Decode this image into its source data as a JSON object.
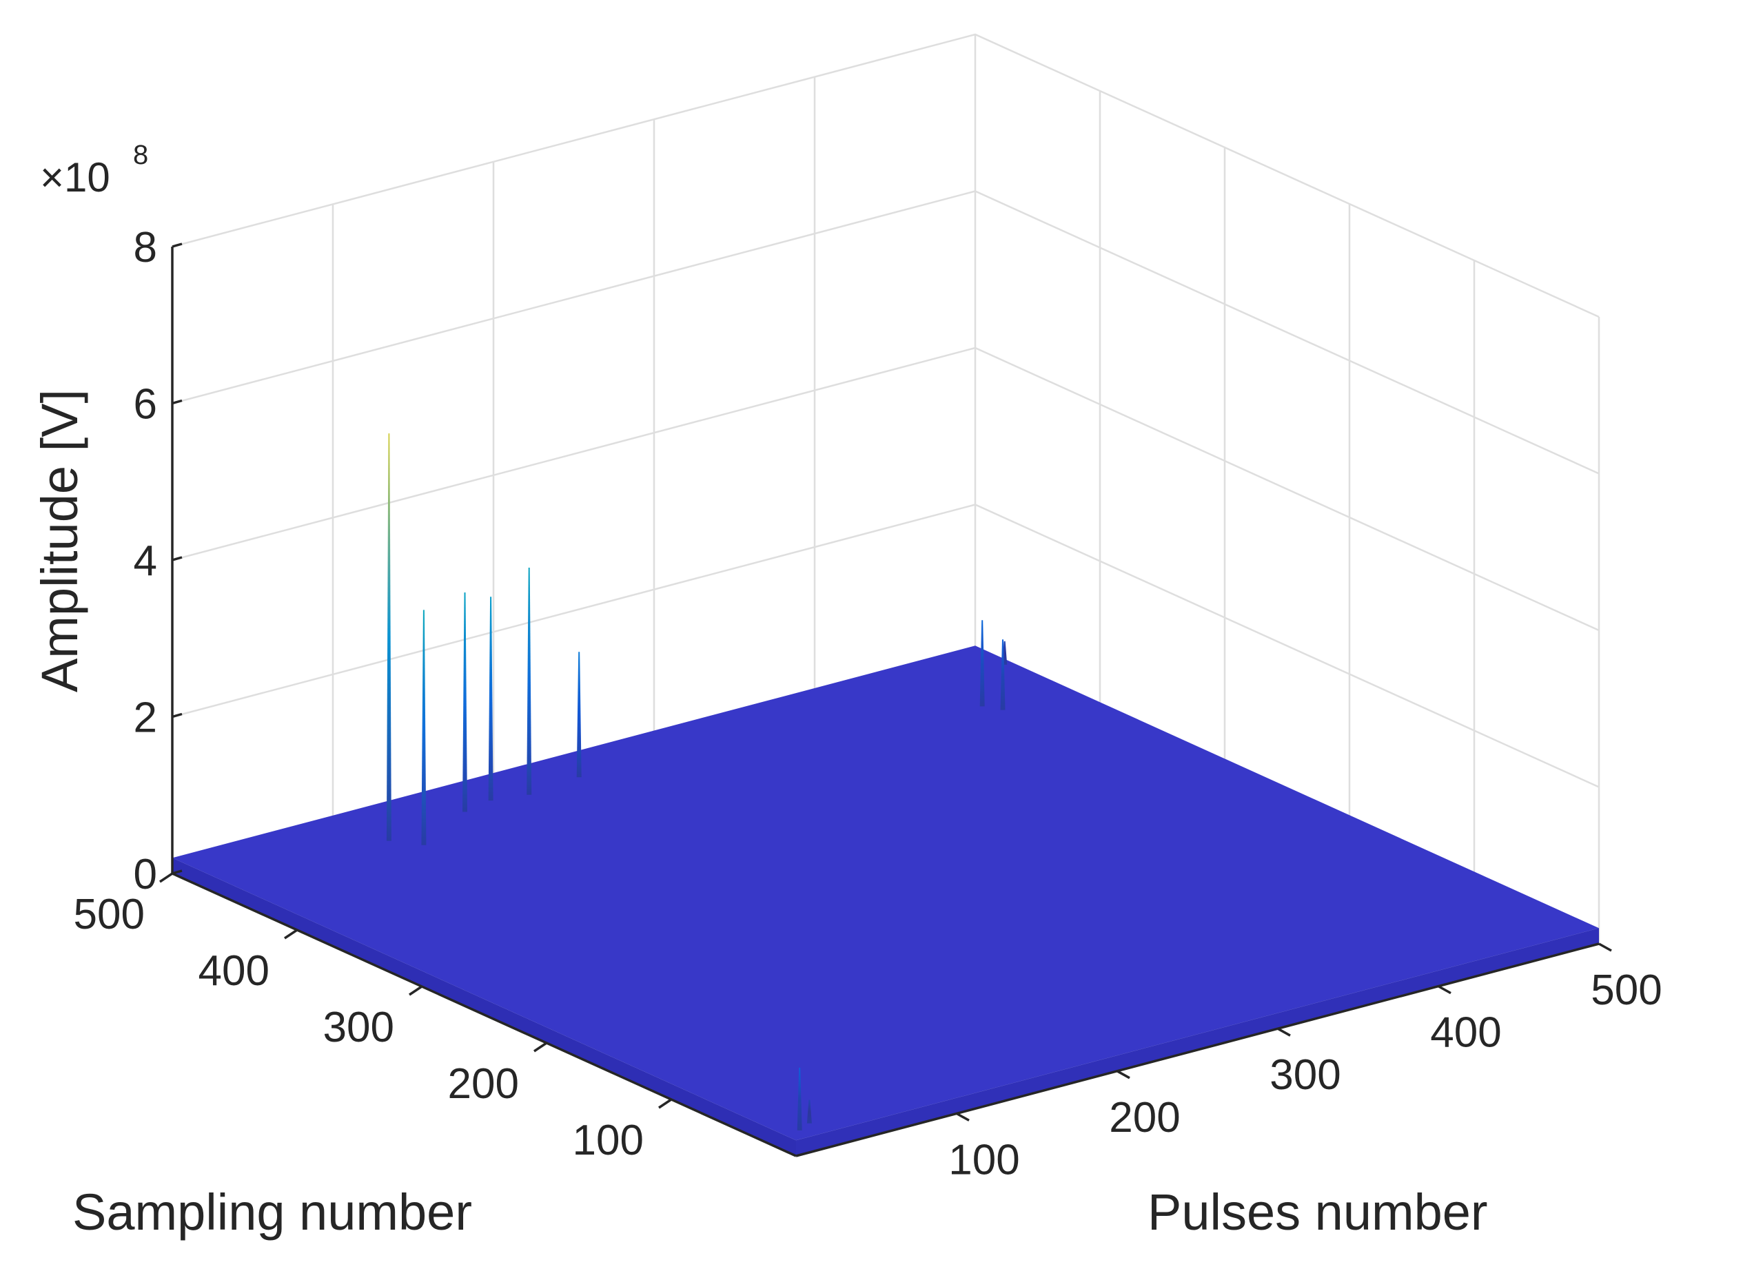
{
  "chart_data": {
    "type": "surface",
    "xlabel": "Pulses number",
    "ylabel": "Sampling number",
    "zlabel": "Amplitude [V]",
    "z_exponent_label": "×10",
    "z_exponent_power": "8",
    "x_ticks": [
      "100",
      "200",
      "300",
      "400",
      "500"
    ],
    "y_ticks": [
      "100",
      "200",
      "300",
      "400",
      "500"
    ],
    "z_ticks": [
      "0",
      "2",
      "4",
      "6",
      "8"
    ],
    "xlim": [
      0,
      500
    ],
    "ylim": [
      0,
      500
    ],
    "zlim": [
      0,
      800000000
    ],
    "grid": true,
    "colormap": "parula",
    "floor_color": "#3838c8",
    "surface_base_amplitude": 20000000,
    "peaks": [
      {
        "pulse": 10,
        "sampling": 10,
        "amplitude": 100000000
      },
      {
        "pulse": 20,
        "sampling": 15,
        "amplitude": 50000000
      },
      {
        "pulse": 100,
        "sampling": 455,
        "amplitude": 540000000
      },
      {
        "pulse": 110,
        "sampling": 440,
        "amplitude": 320000000
      },
      {
        "pulse": 155,
        "sampling": 465,
        "amplitude": 300000000
      },
      {
        "pulse": 175,
        "sampling": 470,
        "amplitude": 280000000
      },
      {
        "pulse": 195,
        "sampling": 465,
        "amplitude": 310000000
      },
      {
        "pulse": 230,
        "sampling": 470,
        "amplitude": 180000000
      },
      {
        "pulse": 450,
        "sampling": 430,
        "amplitude": 130000000
      },
      {
        "pulse": 455,
        "sampling": 420,
        "amplitude": 110000000
      },
      {
        "pulse": 495,
        "sampling": 470,
        "amplitude": 50000000
      }
    ]
  }
}
